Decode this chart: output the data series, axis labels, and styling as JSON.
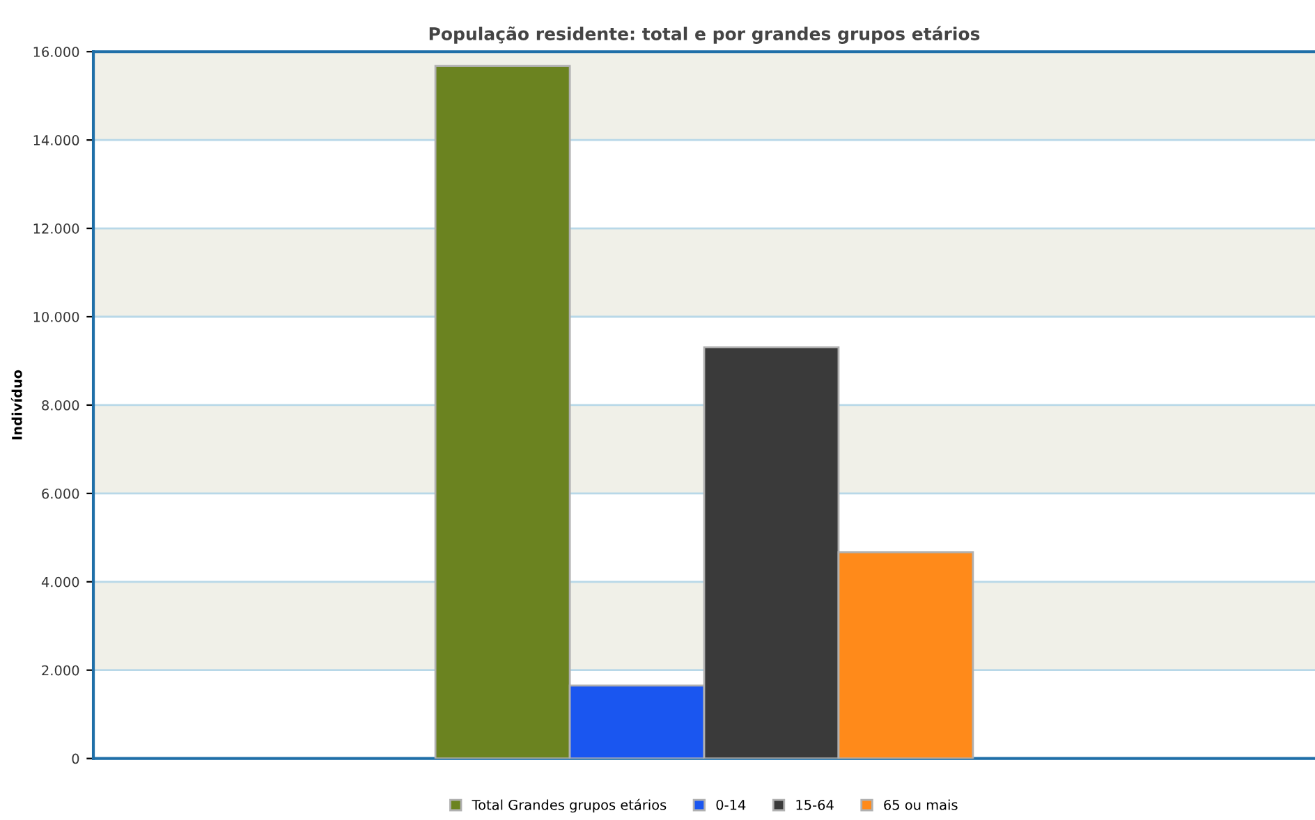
{
  "chart_data": {
    "type": "bar",
    "title": "População residente: total e por grandes grupos etários",
    "ylabel": "Indivíduo",
    "categories": [
      null
    ],
    "series": [
      {
        "name": "Total Grandes grupos etários",
        "color": "#6b8320",
        "values": [
          15680
        ]
      },
      {
        "name": "0-14",
        "color": "#1a56f0",
        "values": [
          1650
        ]
      },
      {
        "name": "15-64",
        "color": "#3a3a3a",
        "values": [
          9310
        ]
      },
      {
        "name": "65 ou mais",
        "color": "#ff8a1a",
        "values": [
          4670
        ]
      }
    ],
    "ylim": [
      0,
      16000
    ],
    "yticks": [
      {
        "value": 0,
        "label": "0"
      },
      {
        "value": 2000,
        "label": "2.000"
      },
      {
        "value": 4000,
        "label": "4.000"
      },
      {
        "value": 6000,
        "label": "6.000"
      },
      {
        "value": 8000,
        "label": "8.000"
      },
      {
        "value": 10000,
        "label": "10.000"
      },
      {
        "value": 12000,
        "label": "12.000"
      },
      {
        "value": 14000,
        "label": "14.000"
      },
      {
        "value": 16000,
        "label": "16.000"
      }
    ],
    "grid": "y",
    "legend": "bottom"
  }
}
